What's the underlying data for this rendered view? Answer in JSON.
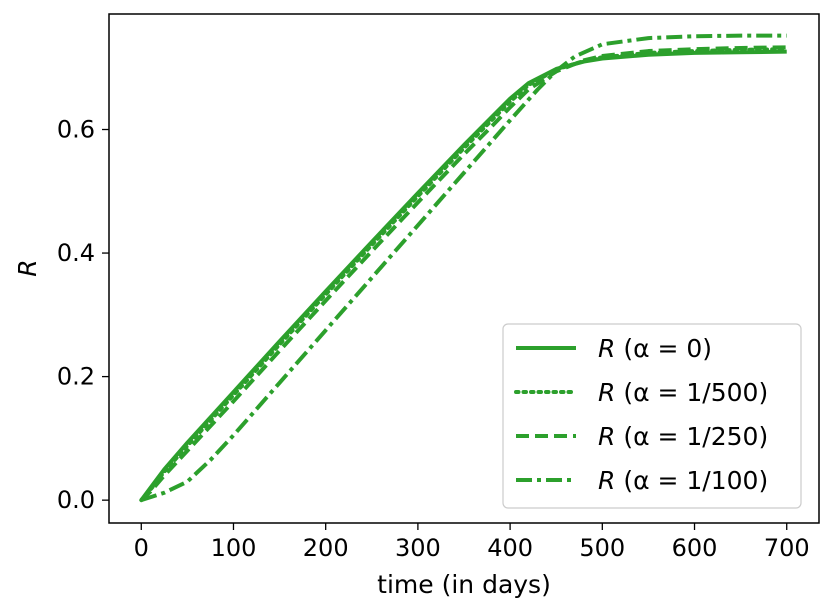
{
  "chart_data": {
    "type": "line",
    "xlabel": "time (in days)",
    "ylabel": "R",
    "xlim": [
      -35,
      735
    ],
    "ylim": [
      -0.037,
      0.787
    ],
    "xticks": [
      0,
      100,
      200,
      300,
      400,
      500,
      600,
      700
    ],
    "yticks": [
      0.0,
      0.2,
      0.4,
      0.6
    ],
    "ytick_labels": [
      "0.0",
      "0.2",
      "0.4",
      "0.6"
    ],
    "grid": false,
    "legend_position": "lower-right",
    "color": "#2ca02c",
    "series": [
      {
        "name": "R (α = 0)",
        "legend_symbol": "R",
        "legend_param": "(α = 0)",
        "dash": "solid",
        "x": [
          0,
          10,
          25,
          50,
          100,
          150,
          200,
          250,
          300,
          350,
          380,
          400,
          420,
          450,
          480,
          500,
          550,
          600,
          650,
          700
        ],
        "y": [
          0.0,
          0.02,
          0.05,
          0.093,
          0.175,
          0.257,
          0.338,
          0.418,
          0.497,
          0.575,
          0.62,
          0.65,
          0.675,
          0.698,
          0.71,
          0.715,
          0.721,
          0.724,
          0.725,
          0.726
        ]
      },
      {
        "name": "R (α = 1/500)",
        "legend_symbol": "R",
        "legend_param": "(α = 1/500)",
        "dash": "dotted",
        "x": [
          0,
          10,
          25,
          50,
          100,
          150,
          200,
          250,
          300,
          350,
          380,
          400,
          420,
          450,
          480,
          500,
          550,
          600,
          650,
          700
        ],
        "y": [
          0.0,
          0.017,
          0.046,
          0.088,
          0.17,
          0.252,
          0.333,
          0.413,
          0.492,
          0.57,
          0.615,
          0.645,
          0.672,
          0.697,
          0.711,
          0.717,
          0.724,
          0.727,
          0.729,
          0.73
        ]
      },
      {
        "name": "R (α = 1/250)",
        "legend_symbol": "R",
        "legend_param": "(α = 1/250)",
        "dash": "dashed",
        "x": [
          0,
          10,
          25,
          50,
          100,
          150,
          200,
          250,
          300,
          350,
          380,
          400,
          420,
          450,
          480,
          500,
          550,
          600,
          650,
          700
        ],
        "y": [
          0.0,
          0.014,
          0.04,
          0.08,
          0.16,
          0.242,
          0.323,
          0.403,
          0.482,
          0.56,
          0.605,
          0.636,
          0.665,
          0.694,
          0.712,
          0.719,
          0.727,
          0.73,
          0.732,
          0.733
        ]
      },
      {
        "name": "R (α = 1/100)",
        "legend_symbol": "R",
        "legend_param": "(α = 1/100)",
        "dash": "dashdot",
        "x": [
          0,
          25,
          50,
          75,
          100,
          150,
          200,
          250,
          300,
          350,
          400,
          430,
          450,
          470,
          500,
          550,
          600,
          650,
          700
        ],
        "y": [
          0.0,
          0.012,
          0.03,
          0.065,
          0.105,
          0.19,
          0.275,
          0.36,
          0.445,
          0.53,
          0.615,
          0.665,
          0.695,
          0.718,
          0.738,
          0.748,
          0.751,
          0.752,
          0.752
        ]
      }
    ]
  }
}
